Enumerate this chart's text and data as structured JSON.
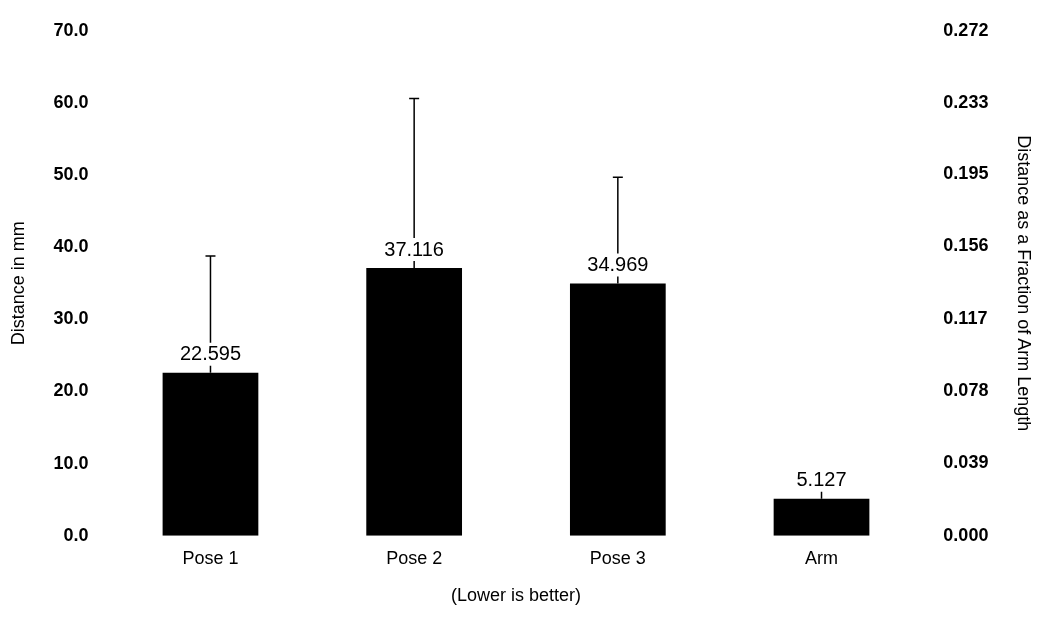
{
  "chart_data": {
    "type": "bar",
    "categories": [
      "Pose 1",
      "Pose 2",
      "Pose 3",
      "Arm"
    ],
    "values": [
      22.595,
      37.116,
      34.969,
      5.127
    ],
    "color": "#000000",
    "errors": [
      [
        22.595,
        38.8
      ],
      [
        37.116,
        60.6
      ],
      [
        34.969,
        49.7
      ],
      [
        5.127,
        8.9
      ]
    ],
    "data_labels": true,
    "xlabel": "(Lower is better)",
    "ylabel": "Distance in mm",
    "y2label": "Distance as a Fraction of Arm Length",
    "ylim": [
      0,
      70
    ],
    "yticks": [
      {
        "value": 0,
        "label": "0.0"
      },
      {
        "value": 10,
        "label": "10.0"
      },
      {
        "value": 20,
        "label": "20.0"
      },
      {
        "value": 30,
        "label": "30.0"
      },
      {
        "value": 40,
        "label": "40.0"
      },
      {
        "value": 50,
        "label": "50.0"
      },
      {
        "value": 60,
        "label": "60.0"
      },
      {
        "value": 70,
        "label": "70.0"
      }
    ],
    "y2lim": [
      0,
      0.272
    ],
    "y2ticks": [
      {
        "value": 0,
        "label": "0.000"
      },
      0.039,
      0.078,
      0.117,
      0.156,
      0.195,
      0.233,
      0.272
    ],
    "grid": false,
    "legend": false
  }
}
